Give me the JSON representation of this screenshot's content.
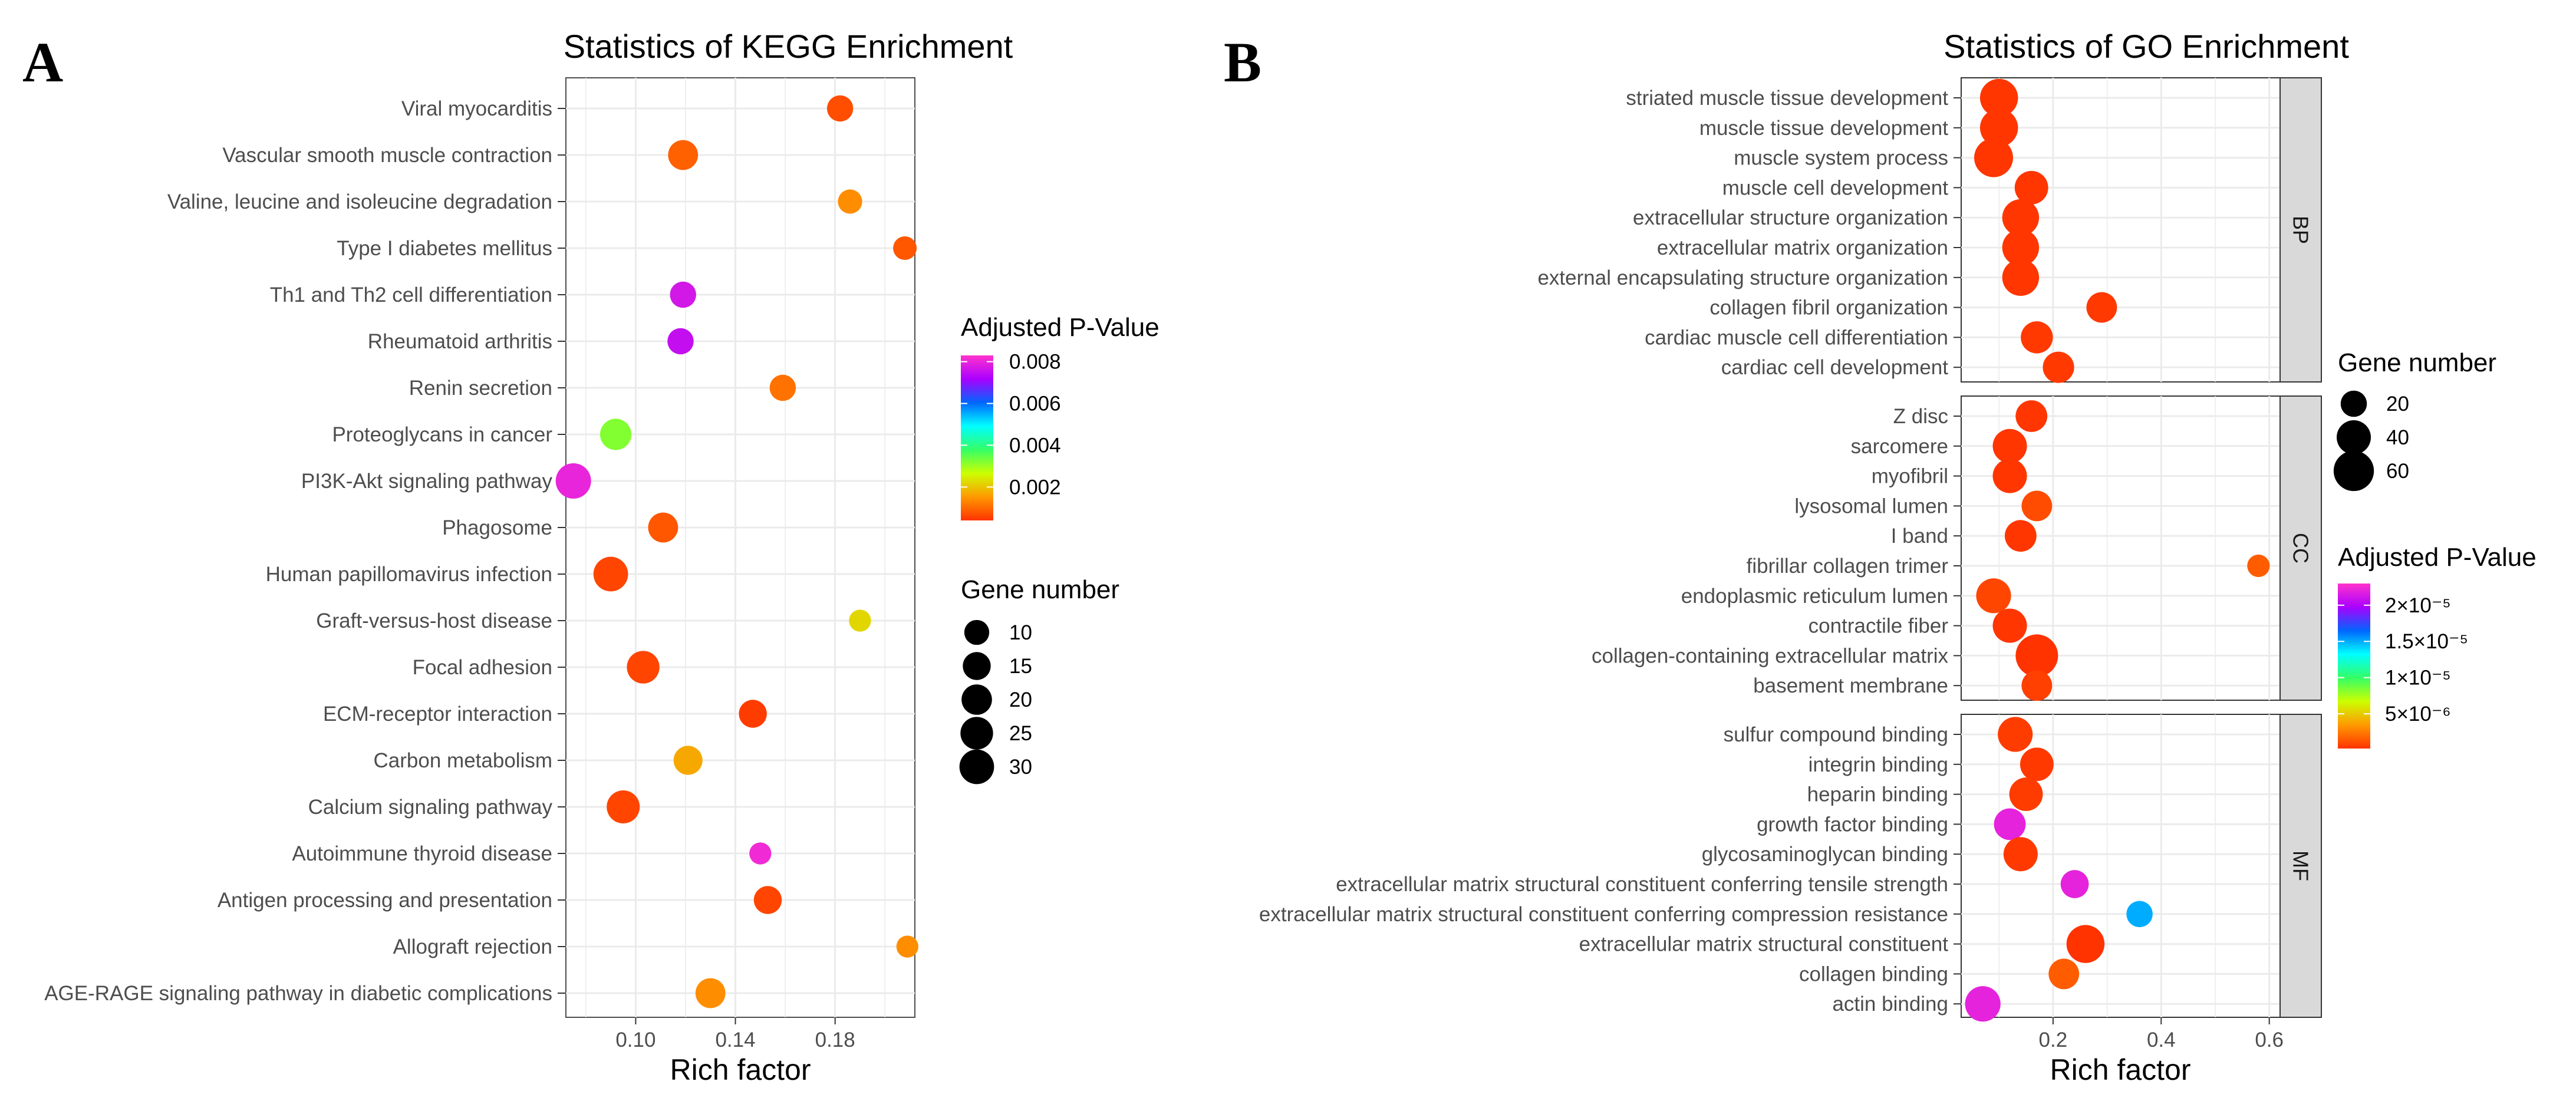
{
  "panels": {
    "a": "A",
    "b": "B"
  },
  "colors": {
    "scale": [
      "#ff3300",
      "#ff9900",
      "#ccff00",
      "#33ff66",
      "#00ffff",
      "#0066ff",
      "#aa00ff",
      "#ff33cc"
    ]
  },
  "chart_data": [
    {
      "type": "scatter",
      "title": "Statistics of KEGG Enrichment",
      "xlabel": "Rich factor",
      "ylabel": "",
      "xlim": [
        0.072,
        0.212
      ],
      "xticks": [
        0.1,
        0.14,
        0.18
      ],
      "xtick_labels": [
        "0.10",
        "0.14",
        "0.18"
      ],
      "size_legend": {
        "title": "Gene number",
        "values": [
          10,
          15,
          20,
          25,
          30
        ],
        "labels": [
          "10",
          "15",
          "20",
          "25",
          "30"
        ]
      },
      "color_legend": {
        "title": "Adjusted P-Value",
        "min": 0.0004,
        "max": 0.0083,
        "ticks": [
          0.002,
          0.004,
          0.006,
          0.008
        ],
        "labels": [
          "0.002",
          "0.004",
          "0.006",
          "0.008"
        ]
      },
      "points": [
        {
          "term": "Viral myocarditis",
          "rich_factor": 0.182,
          "gene_number": 12,
          "p_adj": 0.0007
        },
        {
          "term": "Vascular smooth muscle contraction",
          "rich_factor": 0.119,
          "gene_number": 19,
          "p_adj": 0.0009
        },
        {
          "term": "Valine, leucine and isoleucine degradation",
          "rich_factor": 0.186,
          "gene_number": 9,
          "p_adj": 0.0014
        },
        {
          "term": "Type I diabetes mellitus",
          "rich_factor": 0.208,
          "gene_number": 8,
          "p_adj": 0.0008
        },
        {
          "term": "Th1 and Th2 cell differentiation",
          "rich_factor": 0.119,
          "gene_number": 12,
          "p_adj": 0.0077
        },
        {
          "term": "Rheumatoid arthritis",
          "rich_factor": 0.118,
          "gene_number": 12,
          "p_adj": 0.0075
        },
        {
          "term": "Renin secretion",
          "rich_factor": 0.159,
          "gene_number": 12,
          "p_adj": 0.0011
        },
        {
          "term": "Proteoglycans in cancer",
          "rich_factor": 0.092,
          "gene_number": 22,
          "p_adj": 0.0032
        },
        {
          "term": "PI3K-Akt signaling pathway",
          "rich_factor": 0.075,
          "gene_number": 32,
          "p_adj": 0.008
        },
        {
          "term": "Phagosome",
          "rich_factor": 0.111,
          "gene_number": 19,
          "p_adj": 0.0008
        },
        {
          "term": "Human papillomavirus infection",
          "rich_factor": 0.09,
          "gene_number": 30,
          "p_adj": 0.0006
        },
        {
          "term": "Graft-versus-host disease",
          "rich_factor": 0.19,
          "gene_number": 6,
          "p_adj": 0.0022
        },
        {
          "term": "Focal adhesion",
          "rich_factor": 0.103,
          "gene_number": 25,
          "p_adj": 0.0006
        },
        {
          "term": "ECM-receptor interaction",
          "rich_factor": 0.147,
          "gene_number": 15,
          "p_adj": 0.0005
        },
        {
          "term": "Carbon metabolism",
          "rich_factor": 0.121,
          "gene_number": 17,
          "p_adj": 0.0017
        },
        {
          "term": "Calcium signaling pathway",
          "rich_factor": 0.095,
          "gene_number": 26,
          "p_adj": 0.0006
        },
        {
          "term": "Autoimmune thyroid disease",
          "rich_factor": 0.15,
          "gene_number": 6,
          "p_adj": 0.0081
        },
        {
          "term": "Antigen processing and presentation",
          "rich_factor": 0.153,
          "gene_number": 15,
          "p_adj": 0.0006
        },
        {
          "term": "Allograft rejection",
          "rich_factor": 0.209,
          "gene_number": 6,
          "p_adj": 0.0014
        },
        {
          "term": "AGE-RAGE signaling pathway in diabetic complications",
          "rich_factor": 0.13,
          "gene_number": 19,
          "p_adj": 0.0014
        }
      ]
    },
    {
      "type": "scatter",
      "title": "Statistics of GO Enrichment",
      "xlabel": "Rich factor",
      "ylabel": "",
      "xlim": [
        0.03,
        0.62
      ],
      "xticks": [
        0.2,
        0.4,
        0.6
      ],
      "xtick_labels": [
        "0.2",
        "0.4",
        "0.6"
      ],
      "size_legend": {
        "title": "Gene number",
        "values": [
          20,
          40,
          60
        ],
        "labels": [
          "20",
          "40",
          "60"
        ]
      },
      "color_legend": {
        "title": "Adjusted P-Value",
        "min": 2e-07,
        "max": 2.3e-05,
        "ticks": [
          5e-06,
          1e-05,
          1.5e-05,
          2e-05
        ],
        "labels": [
          "5×10⁻⁶",
          "1×10⁻⁵",
          "1.5×10⁻⁵",
          "2×10⁻⁵"
        ]
      },
      "facets": [
        {
          "label": "BP",
          "terms": [
            {
              "term": "striated muscle tissue development",
              "rich_factor": 0.1,
              "gene_number": 52,
              "p_adj": 3e-07
            },
            {
              "term": "muscle tissue development",
              "rich_factor": 0.1,
              "gene_number": 52,
              "p_adj": 3e-07
            },
            {
              "term": "muscle system process",
              "rich_factor": 0.09,
              "gene_number": 55,
              "p_adj": 3e-07
            },
            {
              "term": "muscle cell development",
              "rich_factor": 0.16,
              "gene_number": 38,
              "p_adj": 3e-07
            },
            {
              "term": "extracellular structure organization",
              "rich_factor": 0.14,
              "gene_number": 48,
              "p_adj": 3e-07
            },
            {
              "term": "extracellular matrix organization",
              "rich_factor": 0.14,
              "gene_number": 48,
              "p_adj": 3e-07
            },
            {
              "term": "external encapsulating structure organization",
              "rich_factor": 0.14,
              "gene_number": 48,
              "p_adj": 3e-07
            },
            {
              "term": "collagen fibril organization",
              "rich_factor": 0.29,
              "gene_number": 30,
              "p_adj": 4e-07
            },
            {
              "term": "cardiac muscle cell differentiation",
              "rich_factor": 0.17,
              "gene_number": 34,
              "p_adj": 4e-07
            },
            {
              "term": "cardiac cell development",
              "rich_factor": 0.21,
              "gene_number": 32,
              "p_adj": 4e-07
            }
          ]
        },
        {
          "label": "CC",
          "terms": [
            {
              "term": "Z disc",
              "rich_factor": 0.16,
              "gene_number": 33,
              "p_adj": 3e-07
            },
            {
              "term": "sarcomere",
              "rich_factor": 0.12,
              "gene_number": 40,
              "p_adj": 3e-07
            },
            {
              "term": "myofibril",
              "rich_factor": 0.12,
              "gene_number": 40,
              "p_adj": 3e-07
            },
            {
              "term": "lysosomal lumen",
              "rich_factor": 0.17,
              "gene_number": 30,
              "p_adj": 1e-06
            },
            {
              "term": "I band",
              "rich_factor": 0.14,
              "gene_number": 33,
              "p_adj": 3e-07
            },
            {
              "term": "fibrillar collagen trimer",
              "rich_factor": 0.58,
              "gene_number": 13,
              "p_adj": 1.5e-06
            },
            {
              "term": "endoplasmic reticulum lumen",
              "rich_factor": 0.09,
              "gene_number": 42,
              "p_adj": 8e-07
            },
            {
              "term": "contractile fiber",
              "rich_factor": 0.12,
              "gene_number": 40,
              "p_adj": 3e-07
            },
            {
              "term": "collagen-containing extracellular matrix",
              "rich_factor": 0.17,
              "gene_number": 68,
              "p_adj": 2e-07
            },
            {
              "term": "basement membrane",
              "rich_factor": 0.17,
              "gene_number": 30,
              "p_adj": 6e-07
            }
          ]
        },
        {
          "label": "MF",
          "terms": [
            {
              "term": "sulfur compound binding",
              "rich_factor": 0.13,
              "gene_number": 42,
              "p_adj": 5e-07
            },
            {
              "term": "integrin binding",
              "rich_factor": 0.17,
              "gene_number": 38,
              "p_adj": 4e-07
            },
            {
              "term": "heparin binding",
              "rich_factor": 0.15,
              "gene_number": 38,
              "p_adj": 5e-07
            },
            {
              "term": "growth factor binding",
              "rich_factor": 0.12,
              "gene_number": 33,
              "p_adj": 2.2e-05
            },
            {
              "term": "glycosaminoglycan binding",
              "rich_factor": 0.14,
              "gene_number": 40,
              "p_adj": 4e-07
            },
            {
              "term": "extracellular matrix structural constituent conferring tensile strength",
              "rich_factor": 0.24,
              "gene_number": 24,
              "p_adj": 2.2e-05
            },
            {
              "term": "extracellular matrix structural constituent conferring compression resistance",
              "rich_factor": 0.36,
              "gene_number": 20,
              "p_adj": 1.5e-05
            },
            {
              "term": "extracellular matrix structural constituent",
              "rich_factor": 0.26,
              "gene_number": 52,
              "p_adj": 2e-07
            },
            {
              "term": "collagen binding",
              "rich_factor": 0.22,
              "gene_number": 30,
              "p_adj": 1.5e-06
            },
            {
              "term": "actin binding",
              "rich_factor": 0.07,
              "gene_number": 44,
              "p_adj": 2.2e-05
            }
          ]
        }
      ]
    }
  ]
}
